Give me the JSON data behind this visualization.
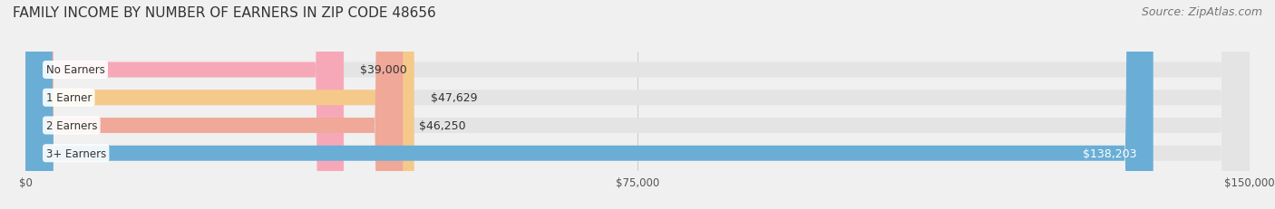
{
  "title": "FAMILY INCOME BY NUMBER OF EARNERS IN ZIP CODE 48656",
  "source": "Source: ZipAtlas.com",
  "categories": [
    "No Earners",
    "1 Earner",
    "2 Earners",
    "3+ Earners"
  ],
  "values": [
    39000,
    47629,
    46250,
    138203
  ],
  "bar_colors": [
    "#f7a8b8",
    "#f5c98a",
    "#f0a898",
    "#6aaed6"
  ],
  "value_label_inside": [
    false,
    false,
    false,
    true
  ],
  "background_color": "#f0f0f0",
  "bar_bg_color": "#e4e4e4",
  "xlim": [
    0,
    150000
  ],
  "xticks": [
    0,
    75000,
    150000
  ],
  "xtick_labels": [
    "$0",
    "$75,000",
    "$150,000"
  ],
  "title_fontsize": 11,
  "source_fontsize": 9,
  "bar_label_fontsize": 9,
  "category_fontsize": 8.5,
  "bar_height": 0.55,
  "figsize": [
    14.06,
    2.32
  ],
  "dpi": 100
}
